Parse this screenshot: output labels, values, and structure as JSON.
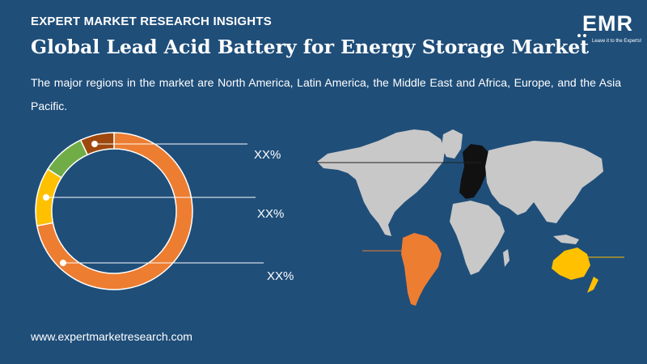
{
  "header": {
    "label": "EXPERT MARKET RESEARCH INSIGHTS",
    "title": "Global Lead Acid Battery for Energy Storage Market",
    "description": "The major regions in the market are North America, Latin America, the Middle East and Africa, Europe, and the Asia Pacific."
  },
  "logo": {
    "text": "EMR",
    "tagline": "Leave it to the Experts!"
  },
  "footer": {
    "url": "www.expertmarketresearch.com"
  },
  "colors": {
    "background": "#1f4e79",
    "orange": "#ed7d31",
    "yellow": "#ffc000",
    "green": "#70ad47",
    "brown": "#9e480e",
    "map_land": "#c8c8c8"
  },
  "chart_data": {
    "type": "pie",
    "subtype": "donut",
    "slices": [
      {
        "color": "#ed7d31",
        "value": 72
      },
      {
        "color": "#ffc000",
        "value": 12
      },
      {
        "color": "#70ad47",
        "value": 9
      },
      {
        "color": "#9e480e",
        "value": 7
      }
    ],
    "callouts": [
      "XX%",
      "XX%",
      "XX%"
    ]
  },
  "map": {
    "highlighted_regions": [
      {
        "region": "Europe",
        "color": "#000000"
      },
      {
        "region": "Latin America",
        "color": "#ed7d31"
      },
      {
        "region": "Oceania",
        "color": "#ffc000"
      }
    ]
  }
}
